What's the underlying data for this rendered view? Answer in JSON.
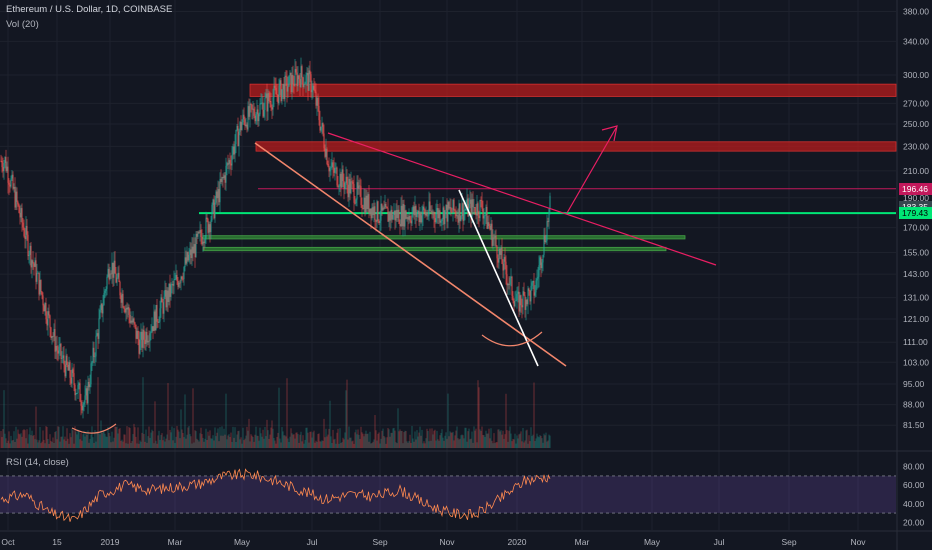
{
  "header": {
    "symbol_line": "Ethereum / U.S. Dollar, 1D, COINBASE",
    "volume_label": "Vol (20)",
    "rsi_label": "RSI (14, close)"
  },
  "price_tags": [
    {
      "value": "196.46",
      "color": "#c2185b"
    },
    {
      "value": "183.35",
      "color": "#37474f"
    },
    {
      "value": "179.43",
      "color": "#00e676"
    }
  ],
  "chart_data": [
    {
      "type": "candlestick",
      "title": "Ethereum / U.S. Dollar, 1D, COINBASE",
      "x_ticks": [
        "Oct",
        "15",
        "2019",
        "Mar",
        "May",
        "Jul",
        "Sep",
        "Nov",
        "2020",
        "Mar",
        "May",
        "Jul",
        "Sep",
        "Nov"
      ],
      "y_ticks": [
        380.0,
        340.0,
        300.0,
        270.0,
        250.0,
        230.0,
        210.0,
        190.0,
        170.0,
        155.0,
        143.0,
        131.0,
        121.0,
        111.0,
        103.0,
        95.0,
        88.0,
        81.5
      ],
      "y_scale": "log",
      "ylim": [
        78,
        385
      ],
      "approx_close_path": [
        {
          "x": "Oct",
          "y": 218
        },
        {
          "x": "15",
          "y": 108
        },
        {
          "x": "Dec",
          "y": 88
        },
        {
          "x": "2019",
          "y": 150
        },
        {
          "x": "Feb",
          "y": 110
        },
        {
          "x": "Mar",
          "y": 138
        },
        {
          "x": "Apr",
          "y": 175
        },
        {
          "x": "May",
          "y": 252
        },
        {
          "x": "Jun",
          "y": 300
        },
        {
          "x": "Jul",
          "y": 290
        },
        {
          "x": "Aug",
          "y": 212
        },
        {
          "x": "Sep",
          "y": 178
        },
        {
          "x": "Oct",
          "y": 180
        },
        {
          "x": "Nov",
          "y": 184
        },
        {
          "x": "Dec",
          "y": 128
        },
        {
          "x": "2020",
          "y": 135
        },
        {
          "x": "Feb",
          "y": 183.35
        }
      ],
      "horizontal_levels": [
        {
          "label": "resistance zone",
          "low": 277,
          "high": 290,
          "color": "#b71c1c"
        },
        {
          "label": "resistance zone",
          "low": 226,
          "high": 234,
          "color": "#b71c1c"
        },
        {
          "label": "196.46",
          "value": 196.46,
          "color": "#c2185b"
        },
        {
          "label": "179.43",
          "value": 179.43,
          "color": "#00e676"
        },
        {
          "label": "support zone",
          "low": 163,
          "high": 165,
          "color": "#2e7d32"
        },
        {
          "label": "support zone",
          "low": 156,
          "high": 158,
          "color": "#2e7d32"
        }
      ],
      "series": [
        {
          "name": "Vol (20)",
          "type": "volume"
        }
      ]
    },
    {
      "type": "line",
      "title": "RSI (14, close)",
      "y_ticks": [
        80.0,
        60.0,
        40.0,
        20.0
      ],
      "ylim": [
        15,
        85
      ],
      "bands": [
        30,
        70
      ],
      "approx_values": [
        45,
        50,
        30,
        22,
        50,
        60,
        55,
        58,
        62,
        70,
        72,
        65,
        55,
        45,
        50,
        48,
        55,
        40,
        30,
        28,
        45,
        65,
        70
      ]
    }
  ]
}
